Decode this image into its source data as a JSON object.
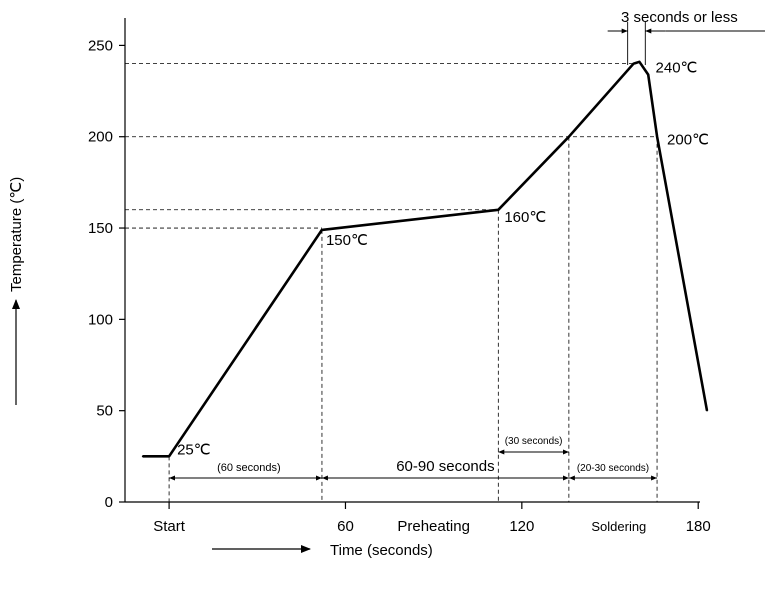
{
  "chart_data": {
    "type": "line",
    "title": "",
    "xlabel": "Time (seconds)",
    "ylabel": "Temperature (℃)",
    "xlim": [
      -15,
      200
    ],
    "ylim": [
      0,
      265
    ],
    "x_ticks": [
      {
        "value": 0,
        "label": "Start"
      },
      {
        "value": 60,
        "label": "60"
      },
      {
        "value": 120,
        "label": "120"
      },
      {
        "value": 180,
        "label": "180"
      }
    ],
    "x_tick_phase_labels": [
      {
        "value": 90,
        "label": "Preheating"
      },
      {
        "value": 153,
        "label": "Soldering"
      }
    ],
    "y_ticks": [
      0,
      50,
      100,
      150,
      200,
      250
    ],
    "series": [
      {
        "values": [
          {
            "x": -9,
            "y": 25
          },
          {
            "x": 0,
            "y": 25
          },
          {
            "x": 52,
            "y": 149
          },
          {
            "x": 112,
            "y": 160
          },
          {
            "x": 136,
            "y": 200
          },
          {
            "x": 158,
            "y": 240
          },
          {
            "x": 160,
            "y": 241
          },
          {
            "x": 163,
            "y": 234
          },
          {
            "x": 166,
            "y": 200
          },
          {
            "x": 183,
            "y": 50
          }
        ]
      }
    ],
    "point_labels": [
      {
        "x": 0,
        "y": 25,
        "text": "25℃"
      },
      {
        "x": 52,
        "y": 149,
        "text": "150℃"
      },
      {
        "x": 112,
        "y": 160,
        "text": "160℃"
      },
      {
        "x": 158,
        "y": 240,
        "text": "240℃"
      },
      {
        "x": 166,
        "y": 200,
        "text": "200℃"
      }
    ],
    "reference_lines": {
      "horizontal": [
        {
          "y": 240,
          "x_to": 158
        },
        {
          "y": 200,
          "x_to": 166
        },
        {
          "y": 160,
          "x_to": 112
        },
        {
          "y": 150,
          "x_to": 52
        }
      ],
      "vertical": [
        {
          "x": 0,
          "y_to": 25
        },
        {
          "x": 52,
          "y_to": 149
        },
        {
          "x": 112,
          "y_to": 160
        },
        {
          "x": 136,
          "y_to": 200
        },
        {
          "x": 166,
          "y_to": 200
        }
      ]
    },
    "durations": [
      {
        "x_from": 0,
        "x_to": 52,
        "text": "(60 seconds)"
      },
      {
        "x_from": 52,
        "x_to": 136,
        "text": "60-90 seconds"
      },
      {
        "x_from": 112,
        "x_to": 136,
        "text": "(30 seconds)"
      },
      {
        "x_from": 136,
        "x_to": 166,
        "text": "(20-30 seconds)"
      }
    ],
    "peak_annotation": {
      "x_from": 156,
      "x_to": 162,
      "text": "3 seconds or less"
    }
  }
}
